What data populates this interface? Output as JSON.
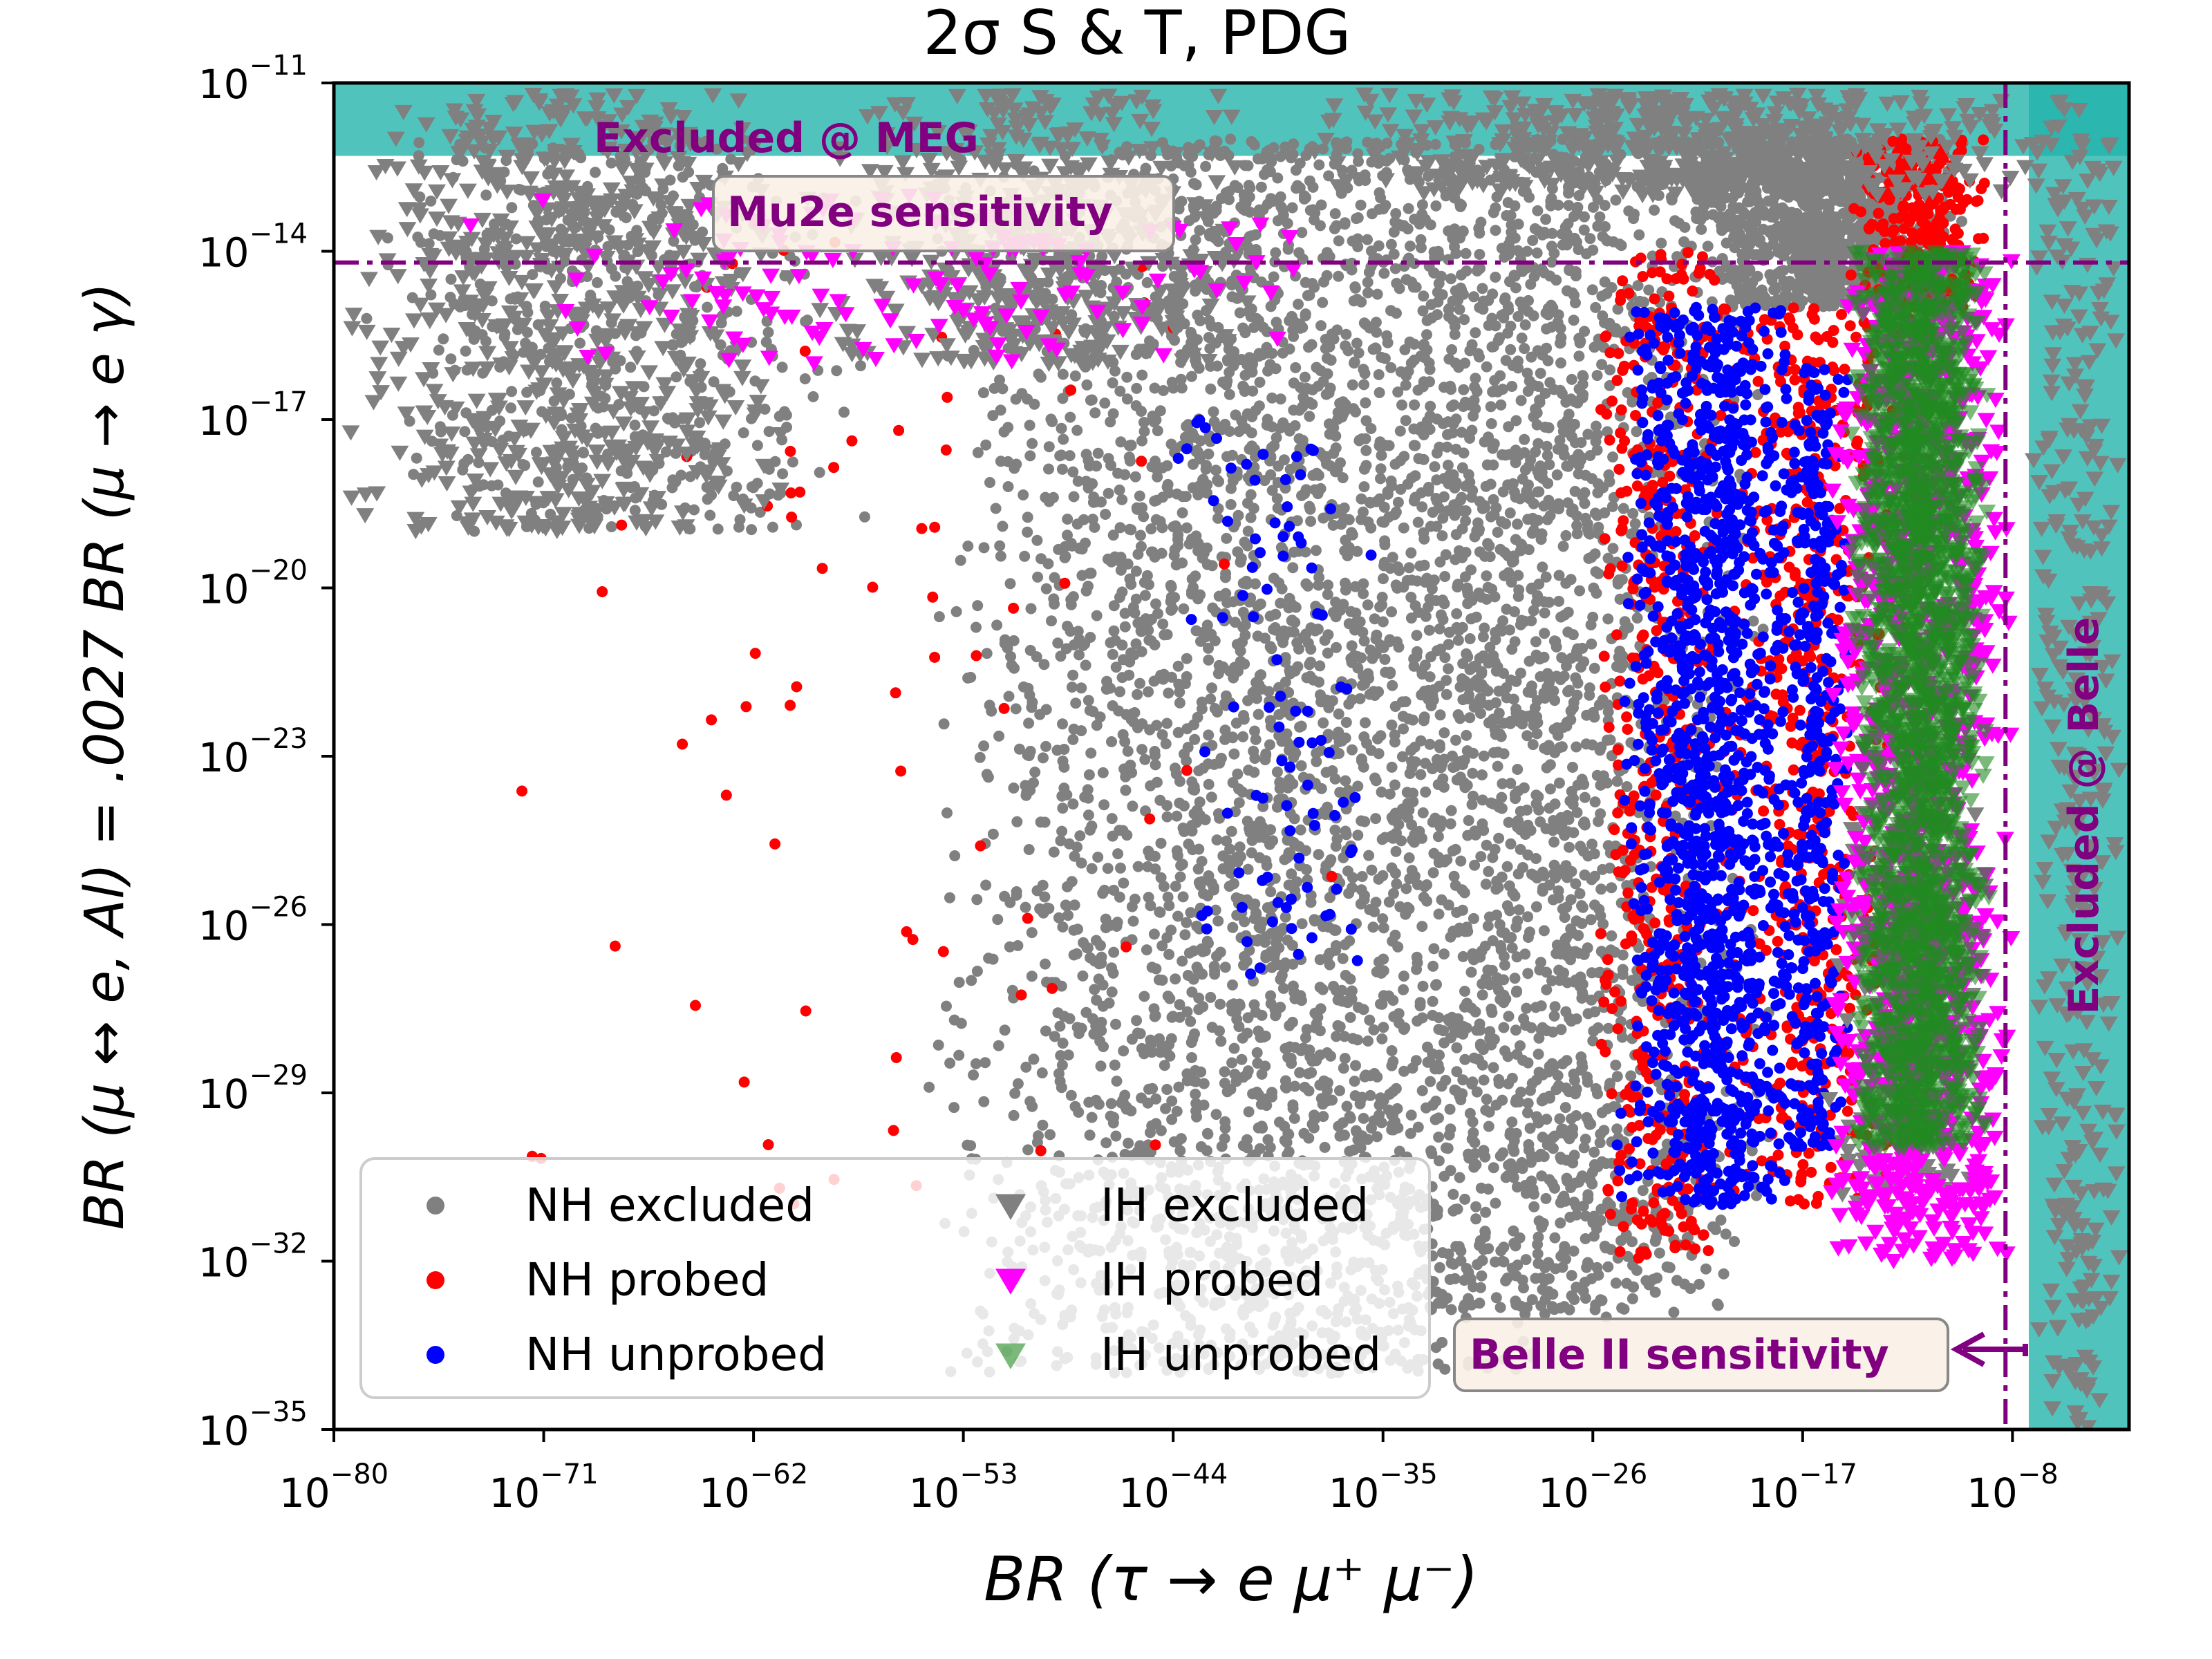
{
  "chart_data": {
    "type": "scatter",
    "title": "2σ S & T, PDG",
    "xlabel": "BR (τ → e μ⁺ μ⁻)",
    "ylabel": "BR (μ ↔ e, Al) = .0027 BR (μ → e γ)",
    "xscale": "log",
    "yscale": "log",
    "xlim_exponent": [
      -80,
      -3
    ],
    "ylim_exponent": [
      -35,
      -11
    ],
    "x_ticks": [
      {
        "exp": -80,
        "base": "10",
        "sup": "−80"
      },
      {
        "exp": -71,
        "base": "10",
        "sup": "−71"
      },
      {
        "exp": -62,
        "base": "10",
        "sup": "−62"
      },
      {
        "exp": -53,
        "base": "10",
        "sup": "−53"
      },
      {
        "exp": -44,
        "base": "10",
        "sup": "−44"
      },
      {
        "exp": -35,
        "base": "10",
        "sup": "−35"
      },
      {
        "exp": -26,
        "base": "10",
        "sup": "−26"
      },
      {
        "exp": -17,
        "base": "10",
        "sup": "−17"
      },
      {
        "exp": -8,
        "base": "10",
        "sup": "−8"
      }
    ],
    "y_ticks": [
      {
        "exp": -11,
        "base": "10",
        "sup": "−11"
      },
      {
        "exp": -14,
        "base": "10",
        "sup": "−14"
      },
      {
        "exp": -17,
        "base": "10",
        "sup": "−17"
      },
      {
        "exp": -20,
        "base": "10",
        "sup": "−20"
      },
      {
        "exp": -23,
        "base": "10",
        "sup": "−23"
      },
      {
        "exp": -26,
        "base": "10",
        "sup": "−26"
      },
      {
        "exp": -29,
        "base": "10",
        "sup": "−29"
      },
      {
        "exp": -32,
        "base": "10",
        "sup": "−32"
      },
      {
        "exp": -35,
        "base": "10",
        "sup": "−35"
      }
    ],
    "excluded_regions": [
      {
        "label": "Excluded @ MEG",
        "axis": "y",
        "from_exp": -12.3,
        "to_exp": -11,
        "color": "#20b2aa"
      },
      {
        "label": "Excluded @ Belle",
        "axis": "x",
        "from_exp": -7.3,
        "to_exp": -3,
        "color": "#20b2aa"
      }
    ],
    "sensitivity_lines": [
      {
        "label": "Mu2e sensitivity",
        "axis": "y",
        "value_exp": -14.2,
        "color": "#800080"
      },
      {
        "label": "Belle II sensitivity",
        "axis": "x",
        "value_exp": -8.3,
        "color": "#800080"
      }
    ],
    "series": [
      {
        "name": "NH excluded",
        "marker": "circle",
        "color": "#808080",
        "count": 7000,
        "regions": [
          {
            "x_exp": [
              -79,
              -57
            ],
            "y_exp": [
              -19,
              -12
            ],
            "weight": 0.07
          },
          {
            "x_exp": [
              -55,
              -25
            ],
            "y_exp": [
              -34,
              -12
            ],
            "weight": 0.53
          },
          {
            "x_exp": [
              -36,
              -18
            ],
            "y_exp": [
              -33,
              -12
            ],
            "weight": 0.25
          },
          {
            "x_exp": [
              -22,
              -10
            ],
            "y_exp": [
              -15,
              -12
            ],
            "weight": 0.15
          }
        ]
      },
      {
        "name": "NH probed",
        "marker": "circle",
        "color": "#ff0000",
        "count": 1500,
        "regions": [
          {
            "x_exp": [
              -26,
              -20
            ],
            "y_exp": [
              -32,
              -14
            ],
            "weight": 0.35
          },
          {
            "x_exp": [
              -21,
              -12
            ],
            "y_exp": [
              -31,
              -15
            ],
            "weight": 0.4
          },
          {
            "x_exp": [
              -15,
              -9
            ],
            "y_exp": [
              -15,
              -12
            ],
            "weight": 0.2
          },
          {
            "x_exp": [
              -74,
              -36
            ],
            "y_exp": [
              -31,
              -13
            ],
            "weight": 0.05
          }
        ]
      },
      {
        "name": "NH unprobed",
        "marker": "circle",
        "color": "#0000ff",
        "count": 1800,
        "regions": [
          {
            "x_exp": [
              -25,
              -17
            ],
            "y_exp": [
              -31,
              -15
            ],
            "weight": 0.75
          },
          {
            "x_exp": [
              -18,
              -15
            ],
            "y_exp": [
              -30,
              -16
            ],
            "weight": 0.2
          },
          {
            "x_exp": [
              -44,
              -35
            ],
            "y_exp": [
              -27,
              -17
            ],
            "weight": 0.05
          }
        ]
      },
      {
        "name": "IH excluded",
        "marker": "triangle-down",
        "color": "#808080",
        "count": 2200,
        "regions": [
          {
            "x_exp": [
              -80,
              -60
            ],
            "y_exp": [
              -19,
              -11.2
            ],
            "weight": 0.3
          },
          {
            "x_exp": [
              -60,
              -40
            ],
            "y_exp": [
              -16,
              -11.2
            ],
            "weight": 0.2
          },
          {
            "x_exp": [
              -40,
              -4
            ],
            "y_exp": [
              -13,
              -11.2
            ],
            "weight": 0.25
          },
          {
            "x_exp": [
              -7.2,
              -3.2
            ],
            "y_exp": [
              -35,
              -12
            ],
            "weight": 0.15
          },
          {
            "x_exp": [
              -16,
              -9
            ],
            "y_exp": [
              -31,
              -24
            ],
            "weight": 0.1
          }
        ]
      },
      {
        "name": "IH probed",
        "marker": "triangle-down",
        "color": "#ff00ff",
        "count": 1400,
        "regions": [
          {
            "x_exp": [
              -16,
              -8
            ],
            "y_exp": [
              -32,
              -14
            ],
            "weight": 0.9
          },
          {
            "x_exp": [
              -75,
              -36
            ],
            "y_exp": [
              -16,
              -13
            ],
            "weight": 0.1
          }
        ]
      },
      {
        "name": "IH unprobed",
        "marker": "triangle-down",
        "color": "#228b22",
        "count": 2400,
        "regions": [
          {
            "x_exp": [
              -15,
              -9
            ],
            "y_exp": [
              -30,
              -14
            ],
            "weight": 1.0
          }
        ]
      }
    ],
    "legend": {
      "position": "lower-left",
      "entries": [
        {
          "label": "NH excluded",
          "marker": "circle",
          "color": "#808080"
        },
        {
          "label": "NH probed",
          "marker": "circle",
          "color": "#ff0000"
        },
        {
          "label": "NH unprobed",
          "marker": "circle",
          "color": "#0000ff"
        },
        {
          "label": "IH excluded",
          "marker": "triangle-down",
          "color": "#808080"
        },
        {
          "label": "IH probed",
          "marker": "triangle-down",
          "color": "#ff00ff"
        },
        {
          "label": "IH unprobed",
          "marker": "triangle-down",
          "color": "#228b22"
        }
      ]
    }
  }
}
